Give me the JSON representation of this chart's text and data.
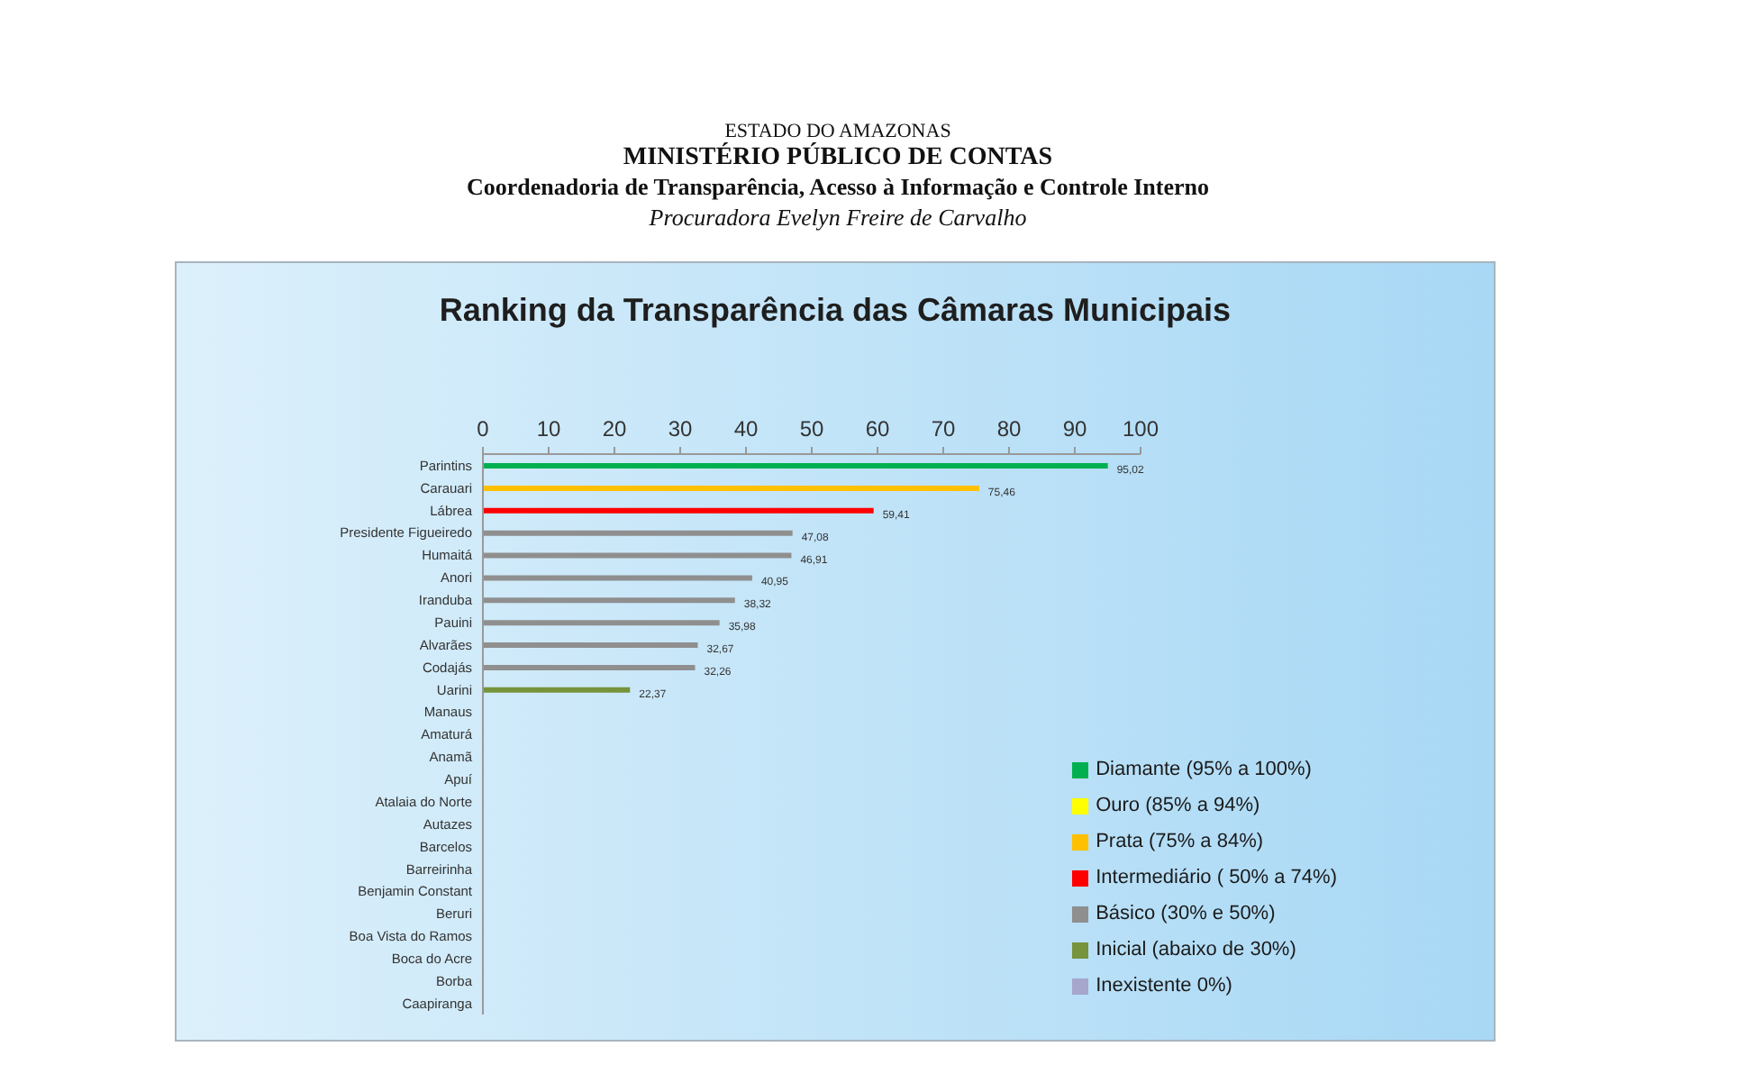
{
  "chart_data": {
    "type": "bar",
    "orientation": "horizontal",
    "stacked": true,
    "title": "Ranking da Transparência das Câmaras Municipais",
    "annotations": [
      "ESTADO DO AMAZONAS",
      "MINISTÉRIO PÚBLICO DE CONTAS",
      "Coordenadoria de Transparência, Acesso à Informação e Controle Interno",
      "Procuradora Evelyn Freire de Carvalho"
    ],
    "categories": [
      "Parintins",
      "Carauari",
      "Lábrea",
      "Presidente Figueiredo",
      "Humaitá",
      "Anori",
      "Iranduba",
      "Pauini",
      "Alvarães",
      "Codajás",
      "Uarini",
      "Manaus",
      "Amaturá",
      "Anamã",
      "Apuí",
      "Atalaia do Norte",
      "Autazes",
      "Barcelos",
      "Barreirinha",
      "Benjamin Constant",
      "Beruri",
      "Boa Vista do Ramos",
      "Boca do Acre",
      "Borba",
      "Caapiranga"
    ],
    "series": [
      {
        "name": "Diamante (95% a 100%)",
        "color": "#00b050",
        "values": [
          95.02,
          null,
          null,
          null,
          null,
          null,
          null,
          null,
          null,
          null,
          null,
          null,
          null,
          null,
          null,
          null,
          null,
          null,
          null,
          null,
          null,
          null,
          null,
          null,
          null
        ],
        "value_labels": [
          "95,02",
          null,
          null,
          null,
          null,
          null,
          null,
          null,
          null,
          null,
          null,
          null,
          null,
          null,
          null,
          null,
          null,
          null,
          null,
          null,
          null,
          null,
          null,
          null,
          null
        ]
      },
      {
        "name": "Ouro (85% a 94%)",
        "color": "#ffff00",
        "values": [
          null,
          null,
          null,
          null,
          null,
          null,
          null,
          null,
          null,
          null,
          null,
          null,
          null,
          null,
          null,
          null,
          null,
          null,
          null,
          null,
          null,
          null,
          null,
          null,
          null
        ]
      },
      {
        "name": "Prata (75% a 84%)",
        "color": "#ffc000",
        "values": [
          null,
          75.46,
          null,
          null,
          null,
          null,
          null,
          null,
          null,
          null,
          null,
          null,
          null,
          null,
          null,
          null,
          null,
          null,
          null,
          null,
          null,
          null,
          null,
          null,
          null
        ],
        "value_labels": [
          null,
          "75,46",
          null,
          null,
          null,
          null,
          null,
          null,
          null,
          null,
          null,
          null,
          null,
          null,
          null,
          null,
          null,
          null,
          null,
          null,
          null,
          null,
          null,
          null,
          null
        ]
      },
      {
        "name": "Intermediário ( 50% a 74%)",
        "color": "#ff0000",
        "values": [
          null,
          null,
          59.41,
          null,
          null,
          null,
          null,
          null,
          null,
          null,
          null,
          null,
          null,
          null,
          null,
          null,
          null,
          null,
          null,
          null,
          null,
          null,
          null,
          null,
          null
        ],
        "value_labels": [
          null,
          null,
          "59,41",
          null,
          null,
          null,
          null,
          null,
          null,
          null,
          null,
          null,
          null,
          null,
          null,
          null,
          null,
          null,
          null,
          null,
          null,
          null,
          null,
          null,
          null
        ]
      },
      {
        "name": "Básico (30% e 50%)",
        "color": "#8f8f8f",
        "values": [
          null,
          null,
          null,
          47.08,
          46.91,
          40.95,
          38.32,
          35.98,
          32.67,
          32.26,
          null,
          null,
          null,
          null,
          null,
          null,
          null,
          null,
          null,
          null,
          null,
          null,
          null,
          null,
          null
        ],
        "value_labels": [
          null,
          null,
          null,
          "47,08",
          "46,91",
          "40,95",
          "38,32",
          "35,98",
          "32,67",
          "32,26",
          null,
          null,
          null,
          null,
          null,
          null,
          null,
          null,
          null,
          null,
          null,
          null,
          null,
          null,
          null
        ]
      },
      {
        "name": "Inicial (abaixo de 30%)",
        "color": "#77933c",
        "values": [
          null,
          null,
          null,
          null,
          null,
          null,
          null,
          null,
          null,
          null,
          22.37,
          null,
          null,
          null,
          null,
          null,
          null,
          null,
          null,
          null,
          null,
          null,
          null,
          null,
          null
        ],
        "value_labels": [
          null,
          null,
          null,
          null,
          null,
          null,
          null,
          null,
          null,
          null,
          "22,37",
          null,
          null,
          null,
          null,
          null,
          null,
          null,
          null,
          null,
          null,
          null,
          null,
          null,
          null
        ]
      },
      {
        "name": "Inexistente 0%)",
        "color": "#a6a6cc",
        "values": [
          null,
          null,
          null,
          null,
          null,
          null,
          null,
          null,
          null,
          null,
          null,
          0,
          0,
          0,
          0,
          0,
          0,
          0,
          0,
          0,
          0,
          0,
          0,
          0,
          0
        ]
      }
    ],
    "xlim": [
      0,
      100
    ],
    "xticks": [
      0,
      10,
      20,
      30,
      40,
      50,
      60,
      70,
      80,
      90,
      100
    ],
    "legend": "bottom right"
  }
}
